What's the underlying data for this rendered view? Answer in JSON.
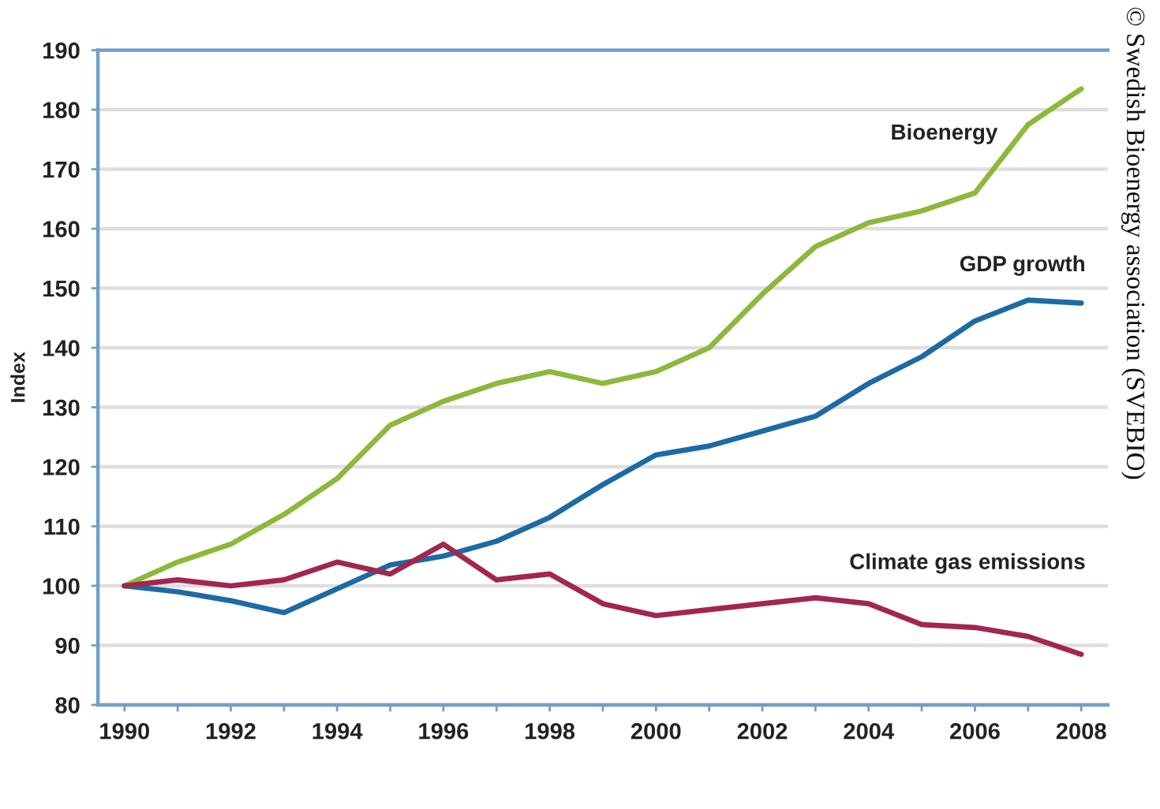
{
  "chart_data": {
    "type": "line",
    "ylabel": "Index",
    "x": [
      1990,
      1991,
      1992,
      1993,
      1994,
      1995,
      1996,
      1997,
      1998,
      1999,
      2000,
      2001,
      2002,
      2003,
      2004,
      2005,
      2006,
      2007,
      2008
    ],
    "xlim": [
      1989.5,
      2008.5
    ],
    "xticks": [
      1990,
      {
        "value": 1991,
        "label": null
      },
      1992,
      {
        "value": 1993,
        "label": null
      },
      1994,
      {
        "value": 1995,
        "label": null
      },
      1996,
      {
        "value": 1997,
        "label": null
      },
      1998,
      {
        "value": 1999,
        "label": null
      },
      2000,
      {
        "value": 2001,
        "label": null
      },
      2002,
      {
        "value": 2003,
        "label": null
      },
      2004,
      {
        "value": 2005,
        "label": null
      },
      2006,
      {
        "value": 2007,
        "label": null
      },
      2008
    ],
    "ylim": [
      80,
      190
    ],
    "yticks": [
      80,
      90,
      100,
      110,
      120,
      130,
      140,
      150,
      160,
      170,
      180,
      190
    ],
    "grid": "y",
    "legend": false,
    "marker": "none",
    "line_style": "solid",
    "series": [
      {
        "name": "Bioenergy",
        "color": "#8cb83c",
        "values": [
          100,
          104,
          107,
          112,
          118,
          127,
          131,
          134,
          136,
          134,
          136,
          140,
          149,
          157,
          161,
          163,
          166,
          177.5,
          183.5
        ]
      },
      {
        "name": "GDP growth",
        "color": "#1d6aa5",
        "values": [
          100,
          99,
          97.5,
          95.5,
          99.5,
          103.5,
          105,
          107.5,
          111.5,
          117,
          122,
          123.5,
          126,
          128.5,
          134,
          138.5,
          144.5,
          148,
          147.5
        ]
      },
      {
        "name": "Climate gas emissions",
        "color": "#a3264f",
        "values": [
          100,
          101,
          100,
          101,
          104,
          102,
          107,
          101,
          102,
          97,
          95,
          96,
          97,
          98,
          97,
          93.5,
          93,
          91.5,
          88.5
        ]
      }
    ],
    "annotations": [
      "© Swedish Bioenergy association (SVEBIO)"
    ]
  }
}
